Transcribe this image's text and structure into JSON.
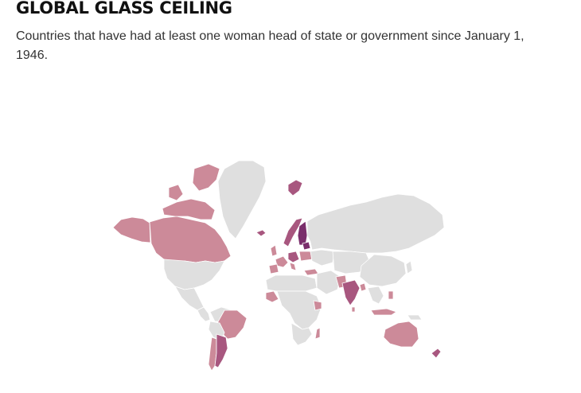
{
  "header": {
    "title": "GLOBAL GLASS CEILING",
    "subtitle": "Countries that have had at least one woman head of state or government since January 1, 1946."
  },
  "colors": {
    "background": "#ffffff",
    "no_data_land": "#dfdfdf",
    "tier_light": "#cc8a99",
    "tier_medium": "#a8577f",
    "tier_dark": "#7a2e6b"
  }
}
